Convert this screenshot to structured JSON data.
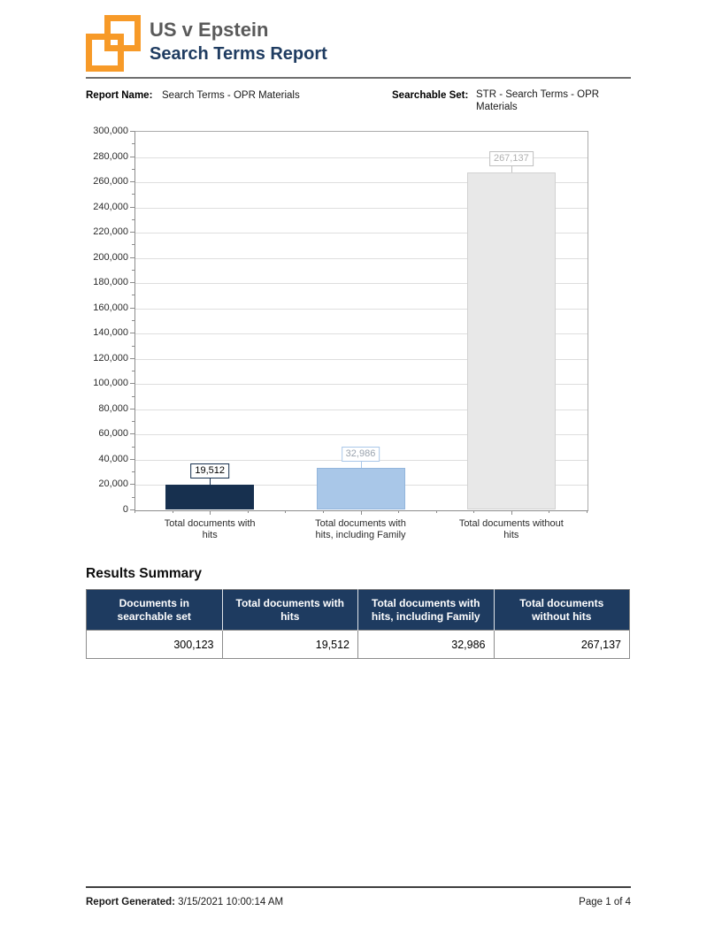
{
  "header": {
    "case_title": "US v Epstein",
    "report_title": "Search Terms Report",
    "logo_color": "#F79A28",
    "title_color": "#1F3C61"
  },
  "meta": {
    "report_name_label": "Report Name:",
    "report_name_value": "Search Terms - OPR Materials",
    "searchable_set_label": "Searchable Set:",
    "searchable_set_value": "STR - Search Terms - OPR Materials"
  },
  "chart_data": {
    "type": "bar",
    "title": "",
    "xlabel": "",
    "ylabel": "",
    "categories": [
      "Total documents with\nhits",
      "Total documents with\nhits, including Family",
      "Total documents without\nhits"
    ],
    "values": [
      19512,
      32986,
      267137
    ],
    "value_labels": [
      "19,512",
      "32,986",
      "267,137"
    ],
    "ylim": [
      0,
      300000
    ],
    "y_major_step": 20000,
    "y_minor_step": 10000,
    "grid": true,
    "legend": false,
    "bar_colors": [
      "#17304F",
      "#A9C7E8",
      "#E8E8E8"
    ],
    "bar_border_colors": [
      "#17304F",
      "#93B5DC",
      "#D2D2D2"
    ],
    "label_box_border_colors": [
      "#17304F",
      "#A9C7E8",
      "#BFBFBF"
    ],
    "label_text_colors": [
      "#000000",
      "#9AA3AE",
      "#AFAFAF"
    ]
  },
  "results": {
    "heading": "Results Summary",
    "table": {
      "headers": [
        "Documents in\nsearchable set",
        "Total documents with\nhits",
        "Total documents with\nhits, including Family",
        "Total documents\nwithout hits"
      ],
      "rows": [
        [
          "300,123",
          "19,512",
          "32,986",
          "267,137"
        ]
      ]
    }
  },
  "footer": {
    "generated_label": "Report Generated:",
    "generated_value": "3/15/2021 10:00:14 AM",
    "page_label": "Page 1 of 4"
  }
}
